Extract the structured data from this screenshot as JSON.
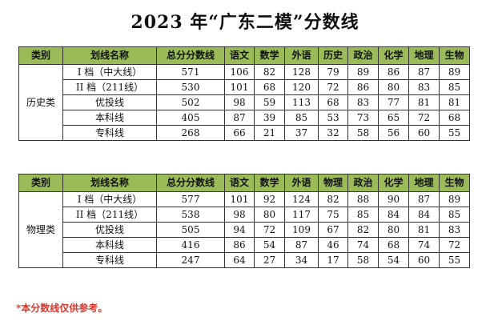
{
  "title": "2023 年“广东二模”分数线",
  "note": "*本分数线仅供参考。",
  "headers": [
    "类别",
    "划线名称",
    "总分分数线",
    "语文",
    "数学",
    "外语",
    "历史",
    "政治",
    "化学",
    "地理",
    "生物"
  ],
  "headers_physics": [
    "类别",
    "划线名称",
    "总分分数线",
    "语文",
    "数学",
    "外语",
    "物理",
    "政治",
    "化学",
    "地理",
    "生物"
  ],
  "history": {
    "category": "历史类",
    "rows": [
      {
        "name": "I 档（中大线）",
        "values": [
          "571",
          "106",
          "82",
          "128",
          "79",
          "89",
          "86",
          "87",
          "89"
        ]
      },
      {
        "name": "II 档（211线）",
        "values": [
          "530",
          "101",
          "68",
          "120",
          "72",
          "86",
          "80",
          "83",
          "85"
        ]
      },
      {
        "name": "优投线",
        "values": [
          "502",
          "98",
          "59",
          "113",
          "68",
          "83",
          "77",
          "81",
          "81"
        ]
      },
      {
        "name": "本科线",
        "values": [
          "405",
          "87",
          "39",
          "85",
          "53",
          "73",
          "65",
          "72",
          "68"
        ]
      },
      {
        "name": "专科线",
        "values": [
          "268",
          "66",
          "21",
          "37",
          "32",
          "58",
          "56",
          "60",
          "55"
        ]
      }
    ]
  },
  "physics": {
    "category": "物理类",
    "rows": [
      {
        "name": "I 档（中大线）",
        "values": [
          "577",
          "101",
          "92",
          "124",
          "82",
          "88",
          "90",
          "87",
          "89"
        ]
      },
      {
        "name": "II 档（211线）",
        "values": [
          "538",
          "98",
          "80",
          "117",
          "75",
          "85",
          "84",
          "84",
          "85"
        ]
      },
      {
        "name": "优投线",
        "values": [
          "505",
          "94",
          "72",
          "109",
          "67",
          "82",
          "80",
          "81",
          "83"
        ]
      },
      {
        "name": "本科线",
        "values": [
          "416",
          "86",
          "54",
          "87",
          "46",
          "74",
          "68",
          "74",
          "72"
        ]
      },
      {
        "name": "专科线",
        "values": [
          "247",
          "64",
          "27",
          "34",
          "17",
          "58",
          "54",
          "60",
          "55"
        ]
      }
    ]
  },
  "colors": {
    "header_bg": "#9bbb59",
    "note": "#e0342b"
  }
}
